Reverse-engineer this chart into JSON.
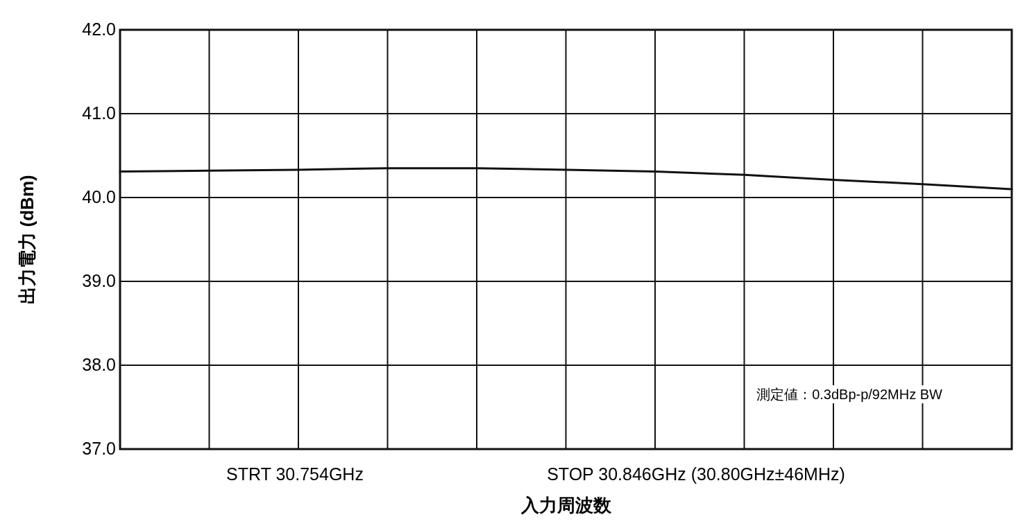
{
  "chart_data": {
    "type": "line",
    "xlabel": "入力周波数",
    "ylabel": "出力電力 (dBm)",
    "categories": [
      null,
      null,
      null,
      null,
      null,
      null,
      null,
      null,
      null,
      null,
      null
    ],
    "values": [
      40.31,
      40.32,
      40.33,
      40.35,
      40.35,
      40.33,
      40.31,
      40.27,
      40.21,
      40.16,
      40.1
    ],
    "color": "#111111",
    "ylim": [
      37,
      42
    ],
    "yticks": [
      {
        "value": 37,
        "label": "37.0"
      },
      {
        "value": 38,
        "label": "38.0"
      },
      {
        "value": 39,
        "label": "39.0"
      },
      {
        "value": 40,
        "label": "40.0"
      },
      {
        "value": 41,
        "label": "41.0"
      },
      {
        "value": 42,
        "label": "42.0"
      }
    ],
    "grid": true,
    "tick_labels": "y",
    "annotations": [
      "STRT 30.754GHz",
      "STOP 30.846GHz (30.80GHz±46MHz)",
      "測定値：0.3dBp-p/92MHz BW"
    ]
  }
}
